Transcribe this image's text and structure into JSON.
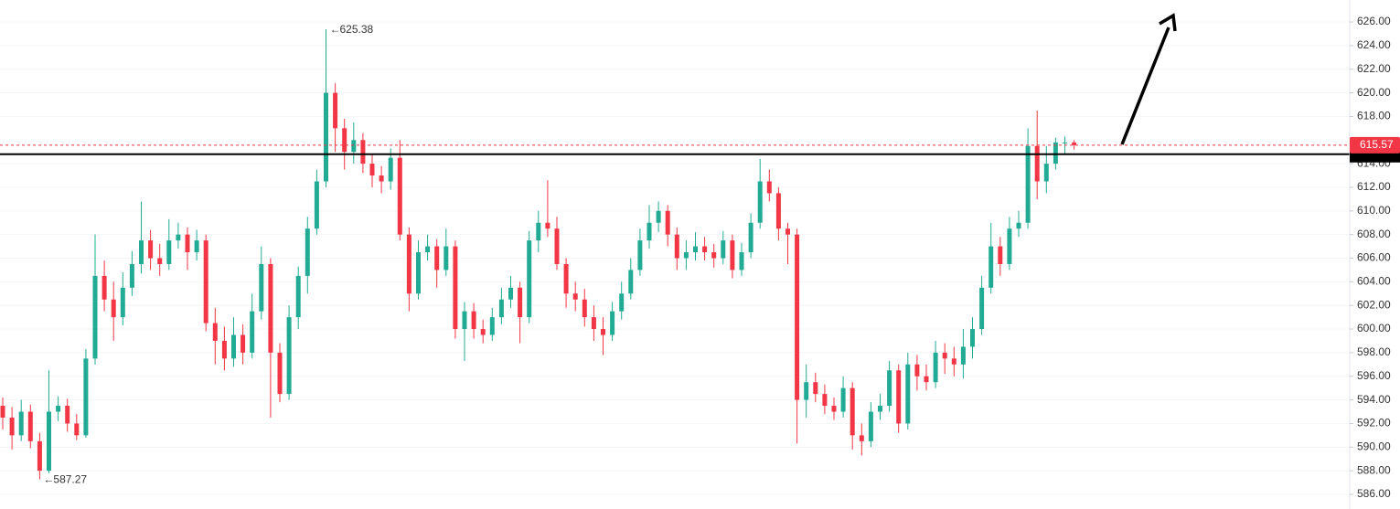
{
  "chart_data": {
    "type": "candlestick",
    "up_color": "#22ab94",
    "down_color": "#f23645",
    "grid": true,
    "level_line": 614.8,
    "level_color": "#000000",
    "ylim": [
      584.76,
      627.86
    ],
    "yticks": [
      {
        "value": 586,
        "label": "586.00"
      },
      {
        "value": 588,
        "label": "588.00"
      },
      {
        "value": 590,
        "label": "590.00"
      },
      {
        "value": 592,
        "label": "592.00"
      },
      {
        "value": 594,
        "label": "594.00"
      },
      {
        "value": 596,
        "label": "596.00"
      },
      {
        "value": 598,
        "label": "598.00"
      },
      {
        "value": 600,
        "label": "600.00"
      },
      {
        "value": 602,
        "label": "602.00"
      },
      {
        "value": 604,
        "label": "604.00"
      },
      {
        "value": 606,
        "label": "606.00"
      },
      {
        "value": 608,
        "label": "608.00"
      },
      {
        "value": 610,
        "label": "610.00"
      },
      {
        "value": 612,
        "label": "612.00"
      },
      {
        "value": 614,
        "label": "614.00"
      },
      {
        "value": 618,
        "label": "618.00"
      },
      {
        "value": 620,
        "label": "620.00"
      },
      {
        "value": 622,
        "label": "622.00"
      },
      {
        "value": 624,
        "label": "624.00"
      },
      {
        "value": 626,
        "label": "626.00"
      }
    ],
    "open": [
      593.5,
      592.5,
      591.0,
      593.0,
      590.5,
      588.0,
      593.0,
      593.5,
      592.0,
      591.0,
      597.5,
      604.5,
      602.5,
      601.0,
      603.5,
      605.5,
      607.5,
      606.0,
      605.5,
      607.5,
      608.0,
      606.5,
      607.5,
      600.5,
      599.0,
      597.5,
      599.5,
      598.0,
      601.5,
      605.5,
      598.0,
      594.5,
      601.0,
      604.5,
      608.5,
      612.5,
      620.0,
      617.0,
      615.0,
      616.0,
      614.0,
      613.0,
      612.5,
      614.5,
      608.0,
      603.0,
      606.5,
      607.0,
      605.0,
      607.0,
      600.0,
      601.5,
      600.0,
      599.5,
      601.0,
      602.5,
      603.5,
      601.0,
      607.5,
      609.0,
      608.5,
      605.5,
      603.0,
      602.5,
      601.0,
      600.0,
      599.5,
      601.5,
      603.0,
      605.0,
      607.5,
      609.0,
      610.0,
      608.0,
      606.0,
      606.5,
      607.0,
      606.5,
      606.0,
      607.5,
      605.0,
      606.5,
      609.0,
      612.5,
      611.5,
      608.5,
      608.0,
      594.0,
      595.5,
      594.5,
      593.5,
      593.0,
      595.0,
      591.0,
      590.5,
      593.0,
      593.5,
      596.5,
      592.0,
      597.0,
      596.0,
      595.5,
      598.0,
      597.5,
      597.0,
      598.5,
      600.0,
      603.5,
      607.0,
      605.5,
      608.5,
      609.0,
      615.5,
      612.5,
      614.0,
      615.8,
      615.8
    ],
    "high": [
      594.2,
      593.4,
      594.0,
      593.6,
      591.2,
      596.5,
      594.3,
      594.1,
      592.8,
      598.3,
      608.0,
      605.8,
      604.0,
      604.8,
      606.6,
      610.8,
      608.4,
      607.2,
      609.3,
      609.0,
      608.6,
      608.4,
      608.0,
      601.8,
      600.2,
      601.0,
      600.4,
      603.0,
      607.0,
      606.0,
      598.8,
      602.0,
      605.3,
      609.5,
      613.5,
      625.38,
      620.8,
      617.8,
      617.5,
      616.6,
      614.8,
      613.8,
      615.3,
      616.0,
      608.6,
      607.5,
      608.0,
      607.6,
      608.5,
      607.5,
      602.3,
      602.2,
      600.8,
      601.8,
      603.5,
      604.5,
      604.0,
      608.3,
      610.0,
      612.6,
      609.5,
      606.0,
      604.0,
      603.4,
      602.0,
      601.0,
      602.3,
      604.0,
      606.0,
      608.5,
      610.5,
      610.8,
      610.5,
      608.6,
      607.5,
      608.2,
      607.8,
      607.2,
      608.3,
      608.0,
      607.3,
      609.8,
      614.4,
      613.5,
      612.0,
      609.0,
      608.5,
      597.0,
      596.3,
      595.3,
      594.2,
      596.0,
      595.5,
      592.0,
      593.8,
      594.5,
      597.3,
      597.0,
      598.0,
      597.8,
      597.0,
      599.0,
      598.8,
      598.5,
      600.0,
      601.0,
      604.5,
      609.0,
      607.8,
      609.5,
      610.0,
      617.0,
      618.5,
      615.5,
      616.2,
      616.3,
      616.0
    ],
    "low": [
      591.5,
      589.8,
      590.5,
      589.9,
      587.27,
      587.8,
      592.2,
      591.3,
      590.6,
      590.8,
      597.0,
      601.5,
      599.0,
      600.3,
      602.8,
      604.7,
      605.0,
      604.5,
      605.0,
      606.8,
      605.0,
      605.8,
      599.8,
      597.0,
      596.5,
      596.8,
      597.0,
      597.5,
      600.8,
      592.5,
      593.8,
      594.0,
      600.0,
      603.0,
      608.0,
      612.0,
      615.0,
      613.5,
      614.0,
      613.2,
      612.0,
      611.5,
      611.8,
      607.5,
      601.5,
      602.5,
      605.8,
      603.5,
      604.5,
      599.2,
      597.3,
      599.2,
      598.8,
      599.0,
      600.4,
      601.8,
      598.8,
      600.5,
      606.5,
      607.8,
      605.0,
      601.8,
      601.5,
      600.2,
      599.0,
      597.8,
      599.0,
      600.8,
      602.5,
      604.5,
      606.8,
      608.2,
      607.0,
      605.0,
      605.0,
      605.8,
      605.8,
      605.2,
      605.5,
      604.3,
      604.5,
      606.0,
      608.5,
      610.8,
      607.5,
      605.5,
      590.3,
      592.5,
      593.8,
      592.8,
      592.3,
      592.5,
      589.8,
      589.3,
      590.0,
      592.3,
      593.0,
      591.2,
      591.5,
      594.8,
      594.8,
      595.0,
      596.2,
      596.0,
      595.8,
      597.5,
      599.5,
      603.0,
      604.5,
      605.0,
      607.8,
      608.5,
      611.0,
      611.5,
      613.5,
      614.8,
      615.2
    ],
    "close": [
      592.5,
      591.0,
      593.0,
      590.5,
      588.0,
      593.0,
      593.5,
      592.0,
      591.0,
      597.5,
      604.5,
      602.5,
      601.0,
      603.5,
      605.5,
      607.5,
      606.0,
      605.5,
      607.5,
      608.0,
      606.5,
      607.5,
      600.5,
      599.0,
      597.5,
      599.5,
      598.0,
      601.5,
      605.5,
      598.0,
      594.5,
      601.0,
      604.5,
      608.5,
      612.5,
      620.0,
      617.0,
      615.0,
      616.0,
      614.0,
      613.0,
      612.5,
      614.5,
      608.0,
      603.0,
      606.5,
      607.0,
      605.0,
      607.0,
      600.0,
      601.5,
      600.0,
      599.5,
      601.0,
      602.5,
      603.5,
      601.0,
      607.5,
      609.0,
      608.5,
      605.5,
      603.0,
      602.5,
      601.0,
      600.0,
      599.5,
      601.5,
      603.0,
      605.0,
      607.5,
      609.0,
      610.0,
      608.0,
      606.0,
      606.5,
      607.0,
      606.5,
      606.0,
      607.5,
      605.0,
      606.5,
      609.0,
      612.5,
      611.5,
      608.5,
      608.0,
      594.0,
      595.5,
      594.5,
      593.5,
      593.0,
      595.0,
      591.0,
      590.5,
      593.0,
      593.5,
      596.5,
      592.0,
      597.0,
      596.0,
      595.5,
      598.0,
      597.5,
      597.0,
      598.5,
      600.0,
      603.5,
      607.0,
      605.5,
      608.5,
      609.0,
      615.5,
      612.5,
      614.0,
      615.8,
      615.8,
      615.57
    ]
  }
}
